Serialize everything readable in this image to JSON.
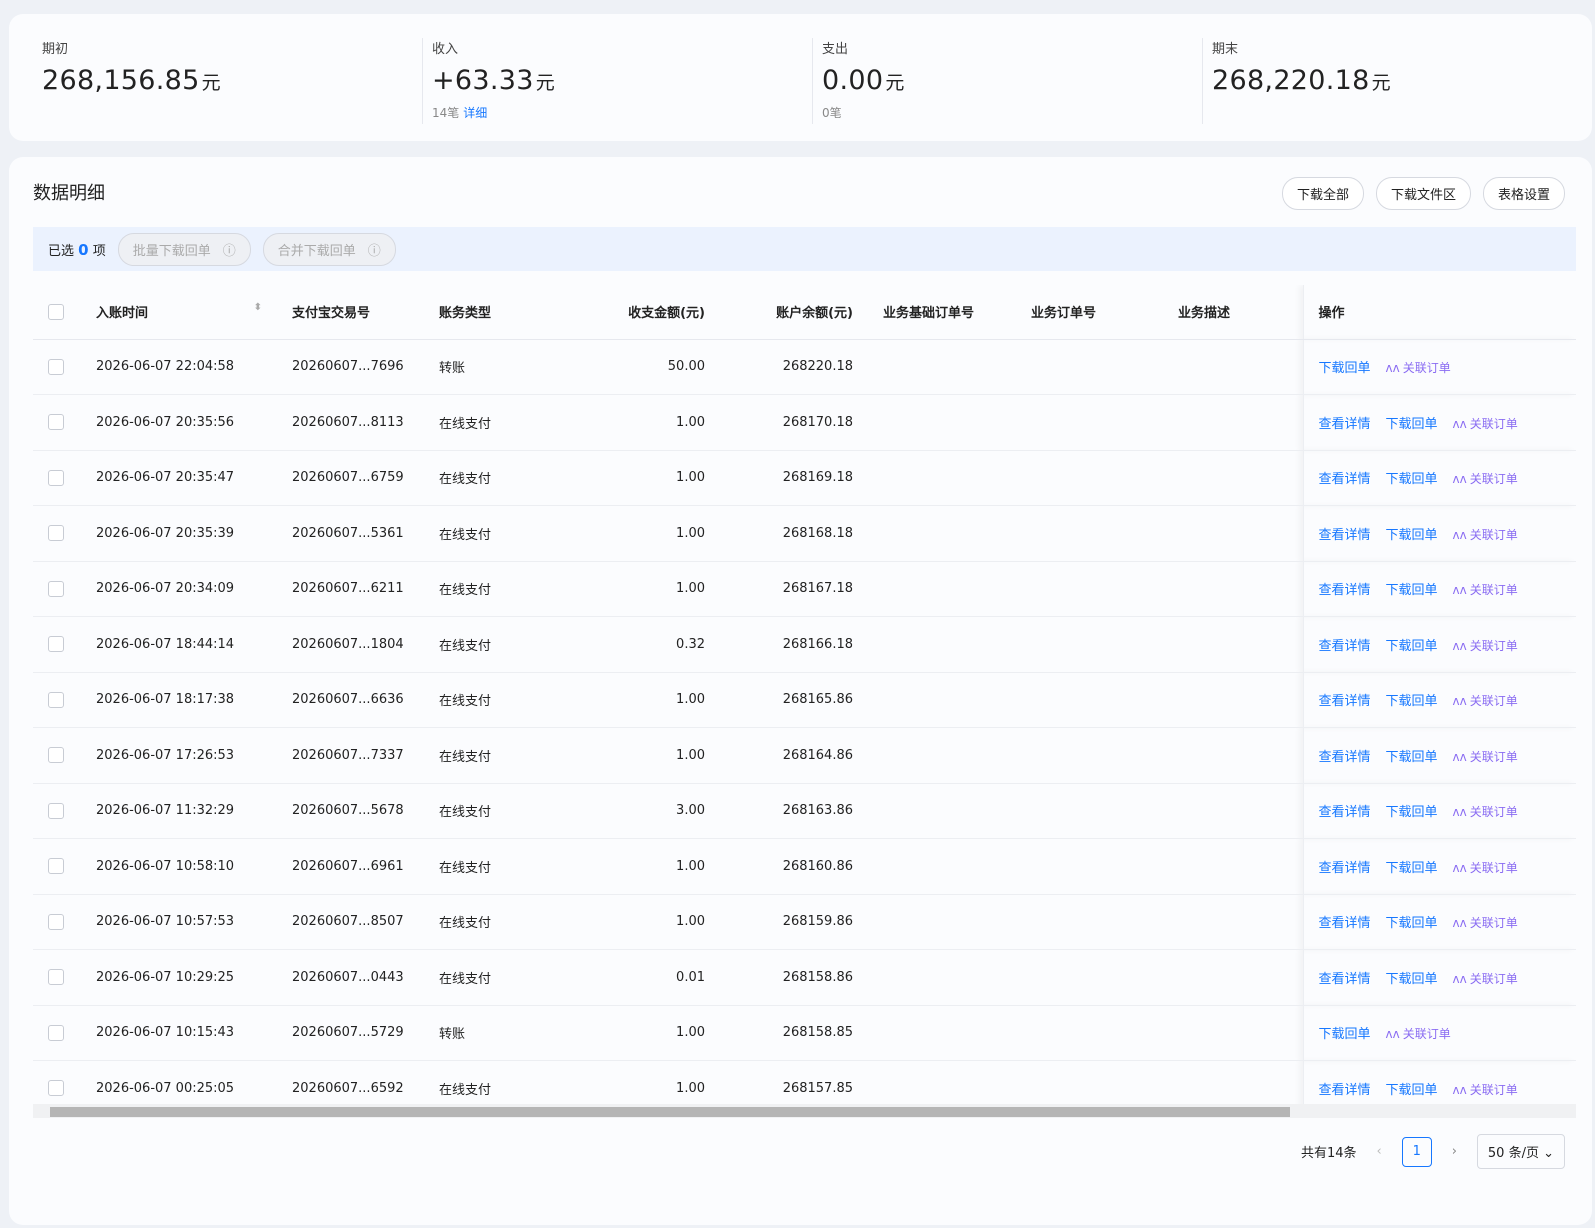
{
  "summary": {
    "items": [
      {
        "label": "期初",
        "amount": "268,156.85",
        "unit": "元"
      },
      {
        "label": "收入",
        "amount": "+63.33",
        "unit": "元",
        "count": "14笔",
        "link": "详细"
      },
      {
        "label": "支出",
        "amount": "0.00",
        "unit": "元",
        "count": "0笔"
      },
      {
        "label": "期末",
        "amount": "268,220.18",
        "unit": "元"
      }
    ]
  },
  "detail": {
    "title": "数据明细",
    "buttons": [
      "下载全部",
      "下载文件区",
      "表格设置"
    ],
    "selection": {
      "prefix": "已选",
      "count": "0",
      "suffix": "项",
      "actions": [
        "批量下载回单",
        "合并下载回单"
      ]
    }
  },
  "table": {
    "columns": [
      "入账时间",
      "支付宝交易号",
      "账务类型",
      "收支金额(元)",
      "账户余额(元)",
      "业务基础订单号",
      "业务订单号",
      "业务描述",
      "操作"
    ],
    "rows": [
      {
        "cells": [
          "2026-06-07 22:04:58",
          "20260607...7696",
          "转账",
          "50.00",
          "268220.18"
        ],
        "actions": [
          "下载回单",
          "关联订单"
        ]
      },
      {
        "cells": [
          "2026-06-07 20:35:56",
          "20260607...8113",
          "在线支付",
          "1.00",
          "268170.18"
        ],
        "actions": [
          "查看详情",
          "下载回单",
          "关联订单"
        ]
      },
      {
        "cells": [
          "2026-06-07 20:35:47",
          "20260607...6759",
          "在线支付",
          "1.00",
          "268169.18"
        ],
        "actions": [
          "查看详情",
          "下载回单",
          "关联订单"
        ]
      },
      {
        "cells": [
          "2026-06-07 20:35:39",
          "20260607...5361",
          "在线支付",
          "1.00",
          "268168.18"
        ],
        "actions": [
          "查看详情",
          "下载回单",
          "关联订单"
        ]
      },
      {
        "cells": [
          "2026-06-07 20:34:09",
          "20260607...6211",
          "在线支付",
          "1.00",
          "268167.18"
        ],
        "actions": [
          "查看详情",
          "下载回单",
          "关联订单"
        ]
      },
      {
        "cells": [
          "2026-06-07 18:44:14",
          "20260607...1804",
          "在线支付",
          "0.32",
          "268166.18"
        ],
        "actions": [
          "查看详情",
          "下载回单",
          "关联订单"
        ]
      },
      {
        "cells": [
          "2026-06-07 18:17:38",
          "20260607...6636",
          "在线支付",
          "1.00",
          "268165.86"
        ],
        "actions": [
          "查看详情",
          "下载回单",
          "关联订单"
        ]
      },
      {
        "cells": [
          "2026-06-07 17:26:53",
          "20260607...7337",
          "在线支付",
          "1.00",
          "268164.86"
        ],
        "actions": [
          "查看详情",
          "下载回单",
          "关联订单"
        ]
      },
      {
        "cells": [
          "2026-06-07 11:32:29",
          "20260607...5678",
          "在线支付",
          "3.00",
          "268163.86"
        ],
        "actions": [
          "查看详情",
          "下载回单",
          "关联订单"
        ]
      },
      {
        "cells": [
          "2026-06-07 10:58:10",
          "20260607...6961",
          "在线支付",
          "1.00",
          "268160.86"
        ],
        "actions": [
          "查看详情",
          "下载回单",
          "关联订单"
        ]
      },
      {
        "cells": [
          "2026-06-07 10:57:53",
          "20260607...8507",
          "在线支付",
          "1.00",
          "268159.86"
        ],
        "actions": [
          "查看详情",
          "下载回单",
          "关联订单"
        ]
      },
      {
        "cells": [
          "2026-06-07 10:29:25",
          "20260607...0443",
          "在线支付",
          "0.01",
          "268158.86"
        ],
        "actions": [
          "查看详情",
          "下载回单",
          "关联订单"
        ]
      },
      {
        "cells": [
          "2026-06-07 10:15:43",
          "20260607...5729",
          "转账",
          "1.00",
          "268158.85"
        ],
        "actions": [
          "下载回单",
          "关联订单"
        ]
      },
      {
        "cells": [
          "2026-06-07 00:25:05",
          "20260607...6592",
          "在线支付",
          "1.00",
          "268157.85"
        ],
        "actions": [
          "查看详情",
          "下载回单",
          "关联订单"
        ]
      }
    ]
  },
  "pagination": {
    "total": "共有14条",
    "page": "1",
    "size": "50 条/页"
  }
}
